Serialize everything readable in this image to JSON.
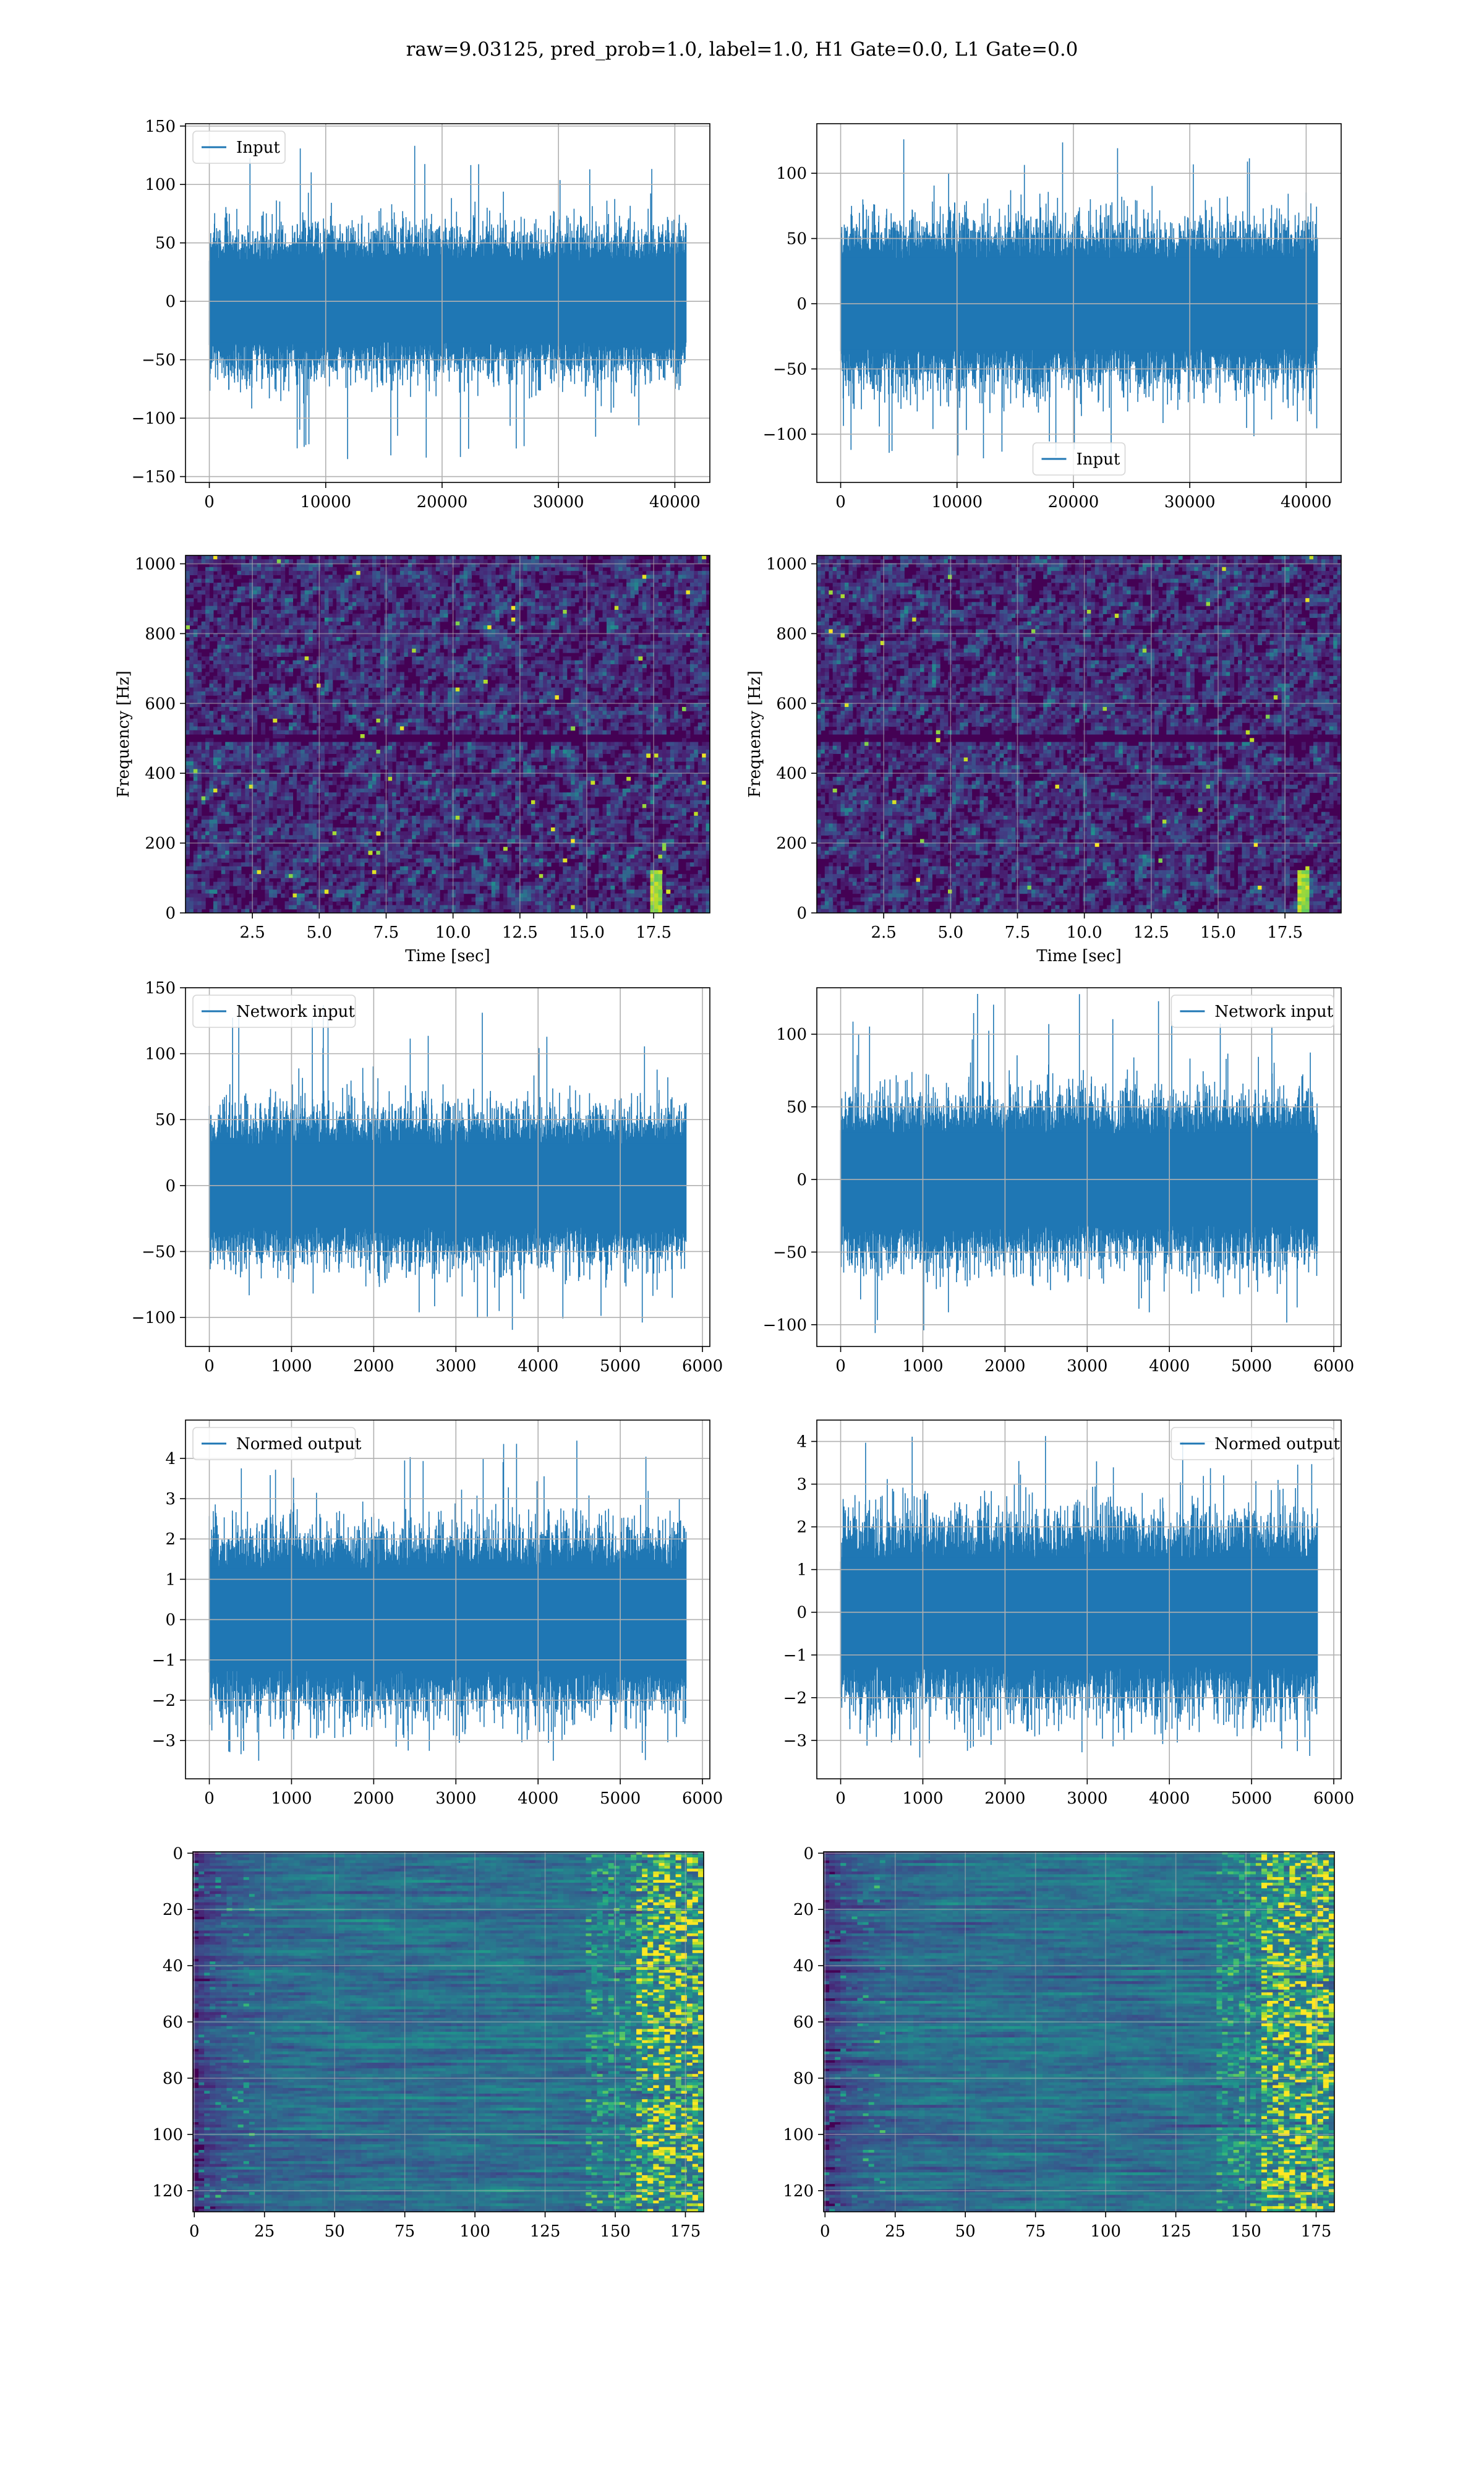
{
  "suptitle": "raw=9.03125, pred_prob=1.0, label=1.0, H1 Gate=0.0, L1 Gate=0.0",
  "colors": {
    "line": "#1f77b4",
    "grid": "#b0b0b0",
    "viridis_dark": "#440154"
  },
  "chart_data": [
    {
      "id": "input-h1",
      "type": "line",
      "style": "dense-noise",
      "series": [
        {
          "name": "Input",
          "n": 40960,
          "std": 22,
          "min": -142,
          "max": 138
        }
      ],
      "legend": {
        "label": "Input",
        "loc": "upper left"
      },
      "xlim": [
        -2048,
        43008
      ],
      "ylim": [
        -155,
        152
      ],
      "xticks": [
        0,
        10000,
        20000,
        30000,
        40000
      ],
      "xticklabels": [
        "0",
        "10000",
        "20000",
        "30000",
        "40000"
      ],
      "yticks": [
        -150,
        -100,
        -50,
        0,
        50,
        100,
        150
      ],
      "yticklabels": [
        "−150",
        "−100",
        "−50",
        "0",
        "50",
        "100",
        "150"
      ],
      "xlabel": "",
      "ylabel": "",
      "grid": true
    },
    {
      "id": "input-l1",
      "type": "line",
      "style": "dense-noise",
      "series": [
        {
          "name": "Input",
          "n": 40960,
          "std": 22,
          "min": -120,
          "max": 130
        }
      ],
      "legend": {
        "label": "Input",
        "loc": "lower center"
      },
      "xlim": [
        -2048,
        43008
      ],
      "ylim": [
        -137,
        138
      ],
      "xticks": [
        0,
        10000,
        20000,
        30000,
        40000
      ],
      "xticklabels": [
        "0",
        "10000",
        "20000",
        "30000",
        "40000"
      ],
      "yticks": [
        -100,
        -50,
        0,
        50,
        100
      ],
      "yticklabels": [
        "−100",
        "−50",
        "0",
        "50",
        "100"
      ],
      "xlabel": "",
      "ylabel": "",
      "grid": true
    },
    {
      "id": "spec-h1",
      "type": "heatmap",
      "style": "spectrogram",
      "xlim": [
        0,
        19.6
      ],
      "ylim": [
        0,
        1024
      ],
      "xticks": [
        2.5,
        5.0,
        7.5,
        10.0,
        12.5,
        15.0,
        17.5
      ],
      "xticklabels": [
        "2.5",
        "5.0",
        "7.5",
        "10.0",
        "12.5",
        "15.0",
        "17.5"
      ],
      "yticks": [
        0,
        200,
        400,
        600,
        800,
        1000
      ],
      "yticklabels": [
        "0",
        "200",
        "400",
        "600",
        "800",
        "1000"
      ],
      "xlabel": "Time [sec]",
      "ylabel": "Frequency [Hz]",
      "grid": true,
      "colormap": "viridis",
      "dark_band_hz": 500,
      "chirp_time_sec": 17.6
    },
    {
      "id": "spec-l1",
      "type": "heatmap",
      "style": "spectrogram",
      "xlim": [
        0,
        19.6
      ],
      "ylim": [
        0,
        1024
      ],
      "xticks": [
        2.5,
        5.0,
        7.5,
        10.0,
        12.5,
        15.0,
        17.5
      ],
      "xticklabels": [
        "2.5",
        "5.0",
        "7.5",
        "10.0",
        "12.5",
        "15.0",
        "17.5"
      ],
      "yticks": [
        0,
        200,
        400,
        600,
        800,
        1000
      ],
      "yticklabels": [
        "0",
        "200",
        "400",
        "600",
        "800",
        "1000"
      ],
      "xlabel": "Time [sec]",
      "ylabel": "Frequency [Hz]",
      "grid": true,
      "colormap": "viridis",
      "dark_band_hz": 500,
      "chirp_time_sec": 18.2
    },
    {
      "id": "netin-h1",
      "type": "line",
      "style": "dense-noise",
      "series": [
        {
          "name": "Network input",
          "n": 5800,
          "std": 20,
          "min": -110,
          "max": 138
        }
      ],
      "legend": {
        "label": "Network input",
        "loc": "upper left"
      },
      "xlim": [
        -290,
        6090
      ],
      "ylim": [
        -122,
        150
      ],
      "xticks": [
        0,
        1000,
        2000,
        3000,
        4000,
        5000,
        6000
      ],
      "xticklabels": [
        "0",
        "1000",
        "2000",
        "3000",
        "4000",
        "5000",
        "6000"
      ],
      "yticks": [
        -100,
        -50,
        0,
        50,
        100,
        150
      ],
      "yticklabels": [
        "−100",
        "−50",
        "0",
        "50",
        "100",
        "150"
      ],
      "xlabel": "",
      "ylabel": "",
      "grid": true
    },
    {
      "id": "netin-l1",
      "type": "line",
      "style": "dense-noise",
      "series": [
        {
          "name": "Network input",
          "n": 5800,
          "std": 20,
          "min": -108,
          "max": 128
        }
      ],
      "legend": {
        "label": "Network input",
        "loc": "upper right"
      },
      "xlim": [
        -290,
        6090
      ],
      "ylim": [
        -115,
        132
      ],
      "xticks": [
        0,
        1000,
        2000,
        3000,
        4000,
        5000,
        6000
      ],
      "xticklabels": [
        "0",
        "1000",
        "2000",
        "3000",
        "4000",
        "5000",
        "6000"
      ],
      "yticks": [
        -100,
        -50,
        0,
        50,
        100
      ],
      "yticklabels": [
        "−100",
        "−50",
        "0",
        "50",
        "100"
      ],
      "xlabel": "",
      "ylabel": "",
      "grid": true
    },
    {
      "id": "normed-h1",
      "type": "line",
      "style": "dense-noise",
      "series": [
        {
          "name": "Normed output",
          "n": 5800,
          "std": 0.8,
          "min": -3.5,
          "max": 4.5
        }
      ],
      "legend": {
        "label": "Normed output",
        "loc": "upper left"
      },
      "xlim": [
        -290,
        6090
      ],
      "ylim": [
        -3.95,
        4.95
      ],
      "xticks": [
        0,
        1000,
        2000,
        3000,
        4000,
        5000,
        6000
      ],
      "xticklabels": [
        "0",
        "1000",
        "2000",
        "3000",
        "4000",
        "5000",
        "6000"
      ],
      "yticks": [
        -3,
        -2,
        -1,
        0,
        1,
        2,
        3,
        4
      ],
      "yticklabels": [
        "−3",
        "−2",
        "−1",
        "0",
        "1",
        "2",
        "3",
        "4"
      ],
      "xlabel": "",
      "ylabel": "",
      "grid": true
    },
    {
      "id": "normed-l1",
      "type": "line",
      "style": "dense-noise",
      "series": [
        {
          "name": "Normed output",
          "n": 5800,
          "std": 0.8,
          "min": -3.4,
          "max": 4.2
        }
      ],
      "legend": {
        "label": "Normed output",
        "loc": "upper right"
      },
      "xlim": [
        -290,
        6090
      ],
      "ylim": [
        -3.9,
        4.5
      ],
      "xticks": [
        0,
        1000,
        2000,
        3000,
        4000,
        5000,
        6000
      ],
      "xticklabels": [
        "0",
        "1000",
        "2000",
        "3000",
        "4000",
        "5000",
        "6000"
      ],
      "yticks": [
        -3,
        -2,
        -1,
        0,
        1,
        2,
        3,
        4
      ],
      "yticklabels": [
        "−3",
        "−2",
        "−1",
        "0",
        "1",
        "2",
        "3",
        "4"
      ],
      "xlabel": "",
      "ylabel": "",
      "grid": true
    },
    {
      "id": "feat-h1",
      "type": "heatmap",
      "style": "feature-map",
      "xlim": [
        -0.5,
        181.5
      ],
      "ylim": [
        127.5,
        -0.5
      ],
      "xticks": [
        0,
        25,
        50,
        75,
        100,
        125,
        150,
        175
      ],
      "xticklabels": [
        "0",
        "25",
        "50",
        "75",
        "100",
        "125",
        "150",
        "175"
      ],
      "yticks": [
        0,
        20,
        40,
        60,
        80,
        100,
        120
      ],
      "yticklabels": [
        "0",
        "20",
        "40",
        "60",
        "80",
        "100",
        "120"
      ],
      "xlabel": "",
      "ylabel": "",
      "grid": true,
      "colormap": "viridis",
      "hot_columns": [
        158,
        181
      ]
    },
    {
      "id": "feat-l1",
      "type": "heatmap",
      "style": "feature-map",
      "xlim": [
        -0.5,
        181.5
      ],
      "ylim": [
        127.5,
        -0.5
      ],
      "xticks": [
        0,
        25,
        50,
        75,
        100,
        125,
        150,
        175
      ],
      "xticklabels": [
        "0",
        "25",
        "50",
        "75",
        "100",
        "125",
        "150",
        "175"
      ],
      "yticks": [
        0,
        20,
        40,
        60,
        80,
        100,
        120
      ],
      "yticklabels": [
        "0",
        "20",
        "40",
        "60",
        "80",
        "100",
        "120"
      ],
      "xlabel": "",
      "ylabel": "",
      "grid": true,
      "colormap": "viridis",
      "hot_columns": [
        155,
        178
      ]
    }
  ]
}
